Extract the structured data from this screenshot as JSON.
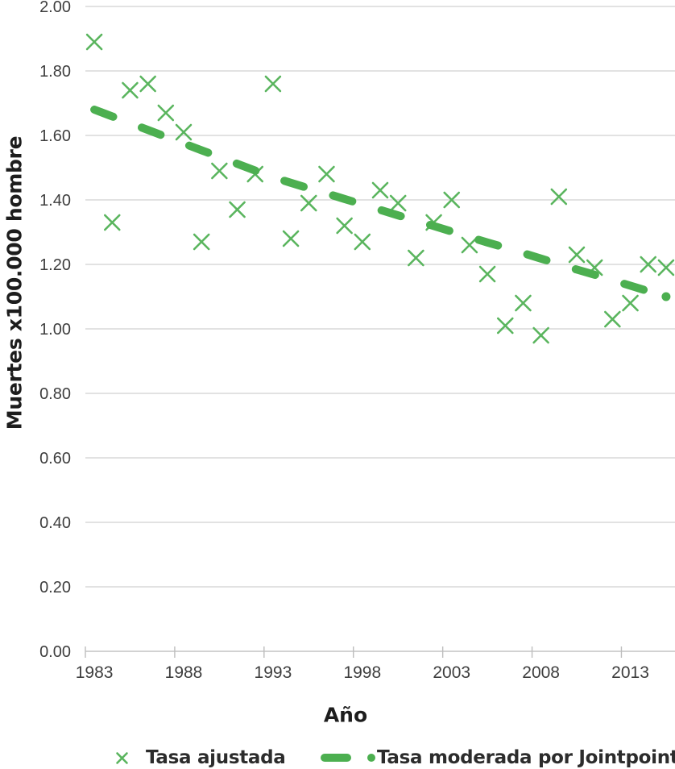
{
  "chart_data": {
    "type": "scatter",
    "title": "",
    "xlabel": "Año",
    "ylabel": "Muertes x100.000 hombre",
    "ylim": [
      0.0,
      2.0
    ],
    "y_tick_step": 0.2,
    "y_tick_labels": [
      "2.00",
      "1.80",
      "1.60",
      "1.40",
      "1.20",
      "1.00",
      "0.80",
      "0.60",
      "0.40",
      "0.20",
      "0.00"
    ],
    "x_tick_labels": [
      "1983",
      "1988",
      "1993",
      "1998",
      "2003",
      "2008",
      "2013"
    ],
    "grid": "horizontal-only",
    "legend_position": "bottom",
    "x_categories": [
      1983,
      1984,
      1985,
      1986,
      1987,
      1988,
      1989,
      1990,
      1991,
      1992,
      1993,
      1994,
      1995,
      1996,
      1997,
      1998,
      1999,
      2000,
      2001,
      2002,
      2003,
      2004,
      2005,
      2006,
      2007,
      2008,
      2009,
      2010,
      2011,
      2012,
      2013,
      2014,
      2015
    ],
    "series": [
      {
        "name": "Tasa ajustada",
        "type": "scatter",
        "marker": "x",
        "color": "#5ab55e",
        "values": [
          1.89,
          1.33,
          1.74,
          1.76,
          1.67,
          1.61,
          1.27,
          1.49,
          1.37,
          1.48,
          1.76,
          1.28,
          1.39,
          1.48,
          1.32,
          1.27,
          1.43,
          1.39,
          1.22,
          1.33,
          1.4,
          1.26,
          1.17,
          1.01,
          1.08,
          0.98,
          1.41,
          1.23,
          1.19,
          1.03,
          1.08,
          1.2,
          1.19
        ]
      },
      {
        "name": "Tasa moderada por Jointpoint",
        "type": "line",
        "style": "dashed",
        "end_dot": true,
        "color": "#4caf50",
        "values": [
          1.68,
          1.659,
          1.638,
          1.617,
          1.596,
          1.575,
          1.554,
          1.533,
          1.512,
          1.491,
          1.47,
          1.453,
          1.436,
          1.42,
          1.403,
          1.386,
          1.369,
          1.352,
          1.336,
          1.319,
          1.302,
          1.285,
          1.268,
          1.252,
          1.235,
          1.218,
          1.201,
          1.184,
          1.168,
          1.151,
          1.134,
          1.117,
          1.1
        ]
      }
    ]
  },
  "legend": {
    "items": [
      {
        "marker": "x-marker",
        "label": "Tasa ajustada"
      },
      {
        "marker": "dash-and-dot",
        "bullet": "•",
        "label": "Tasa moderada por Jointpoint"
      }
    ]
  },
  "colors": {
    "marker_green": "#5ab55e",
    "line_green": "#4caf50",
    "gridline": "#d9d9d9",
    "axis_line": "#c4c4c4",
    "tick_mark": "#bdbdbd",
    "tick_text": "#3e3e3e",
    "title_text": "#1d1d1d",
    "legend_text": "#2c2c2c",
    "background": "#ffffff"
  }
}
